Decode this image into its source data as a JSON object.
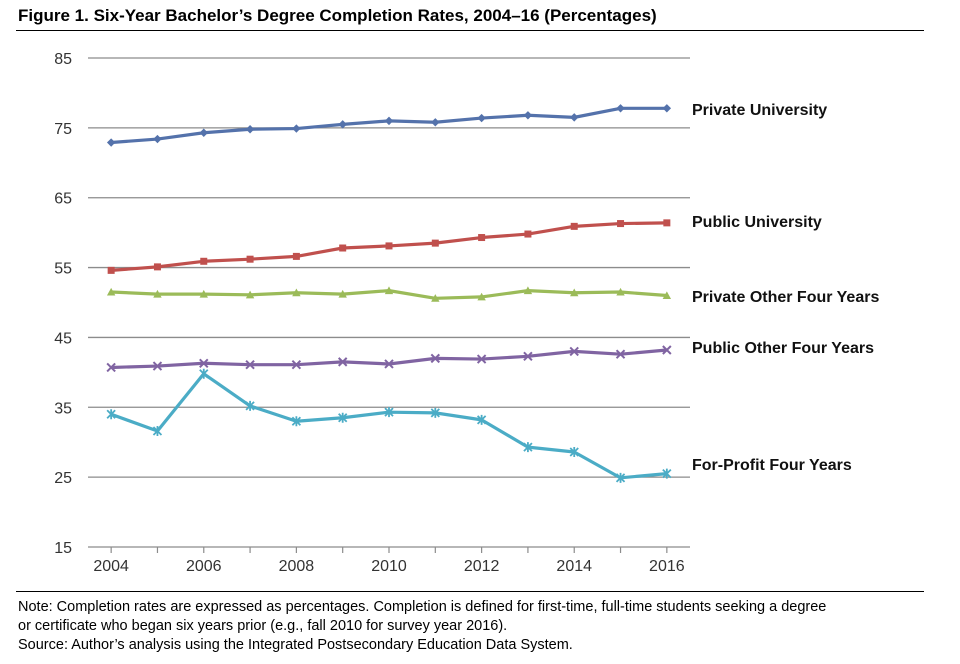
{
  "figure": {
    "title": "Figure 1. Six-Year Bachelor’s Degree Completion Rates, 2004–16 (Percentages)",
    "note_lines": [
      "Note: Completion rates are expressed as percentages. Completion is defined for first-time, full-time students seeking a degree",
      "or certificate who began six years prior (e.g., fall 2010 for survey year 2016).",
      "Source: Author’s analysis using the Integrated Postsecondary Education Data System."
    ]
  },
  "chart_data": {
    "type": "line",
    "title": "Six-Year Bachelor’s Degree Completion Rates, 2004–16 (Percentages)",
    "xlabel": "",
    "ylabel": "",
    "x": [
      2004,
      2005,
      2006,
      2007,
      2008,
      2009,
      2010,
      2011,
      2012,
      2013,
      2014,
      2015,
      2016
    ],
    "xticks": [
      "2004",
      "2006",
      "2008",
      "2010",
      "2012",
      "2014",
      "2016"
    ],
    "yticks": [
      "15",
      "25",
      "35",
      "45",
      "55",
      "65",
      "75",
      "85"
    ],
    "ylim": [
      15,
      85
    ],
    "grid": true,
    "series": [
      {
        "name": "Private University",
        "color": "#5472ab",
        "marker": "diamond",
        "values": [
          72.9,
          73.4,
          74.3,
          74.8,
          74.9,
          75.5,
          76.0,
          75.8,
          76.4,
          76.8,
          76.5,
          77.8,
          77.8
        ]
      },
      {
        "name": "Public University",
        "color": "#c0504d",
        "marker": "square",
        "values": [
          54.6,
          55.1,
          55.9,
          56.2,
          56.6,
          57.8,
          58.1,
          58.5,
          59.3,
          59.8,
          60.9,
          61.3,
          61.4
        ]
      },
      {
        "name": "Private Other Four Years",
        "color": "#9bbb59",
        "marker": "triangle",
        "values": [
          51.5,
          51.2,
          51.2,
          51.1,
          51.4,
          51.2,
          51.7,
          50.6,
          50.8,
          51.7,
          51.4,
          51.5,
          51.0
        ]
      },
      {
        "name": "Public  Other Four Years",
        "color": "#8064a2",
        "marker": "x",
        "values": [
          40.7,
          40.9,
          41.3,
          41.1,
          41.1,
          41.5,
          41.2,
          42.0,
          41.9,
          42.3,
          43.0,
          42.6,
          43.2
        ]
      },
      {
        "name": "For-Profit Four Years",
        "color": "#4bacc6",
        "marker": "star",
        "values": [
          34.0,
          31.6,
          39.8,
          35.2,
          33.0,
          33.5,
          34.3,
          34.2,
          33.2,
          29.3,
          28.6,
          24.9,
          25.5
        ]
      }
    ]
  }
}
